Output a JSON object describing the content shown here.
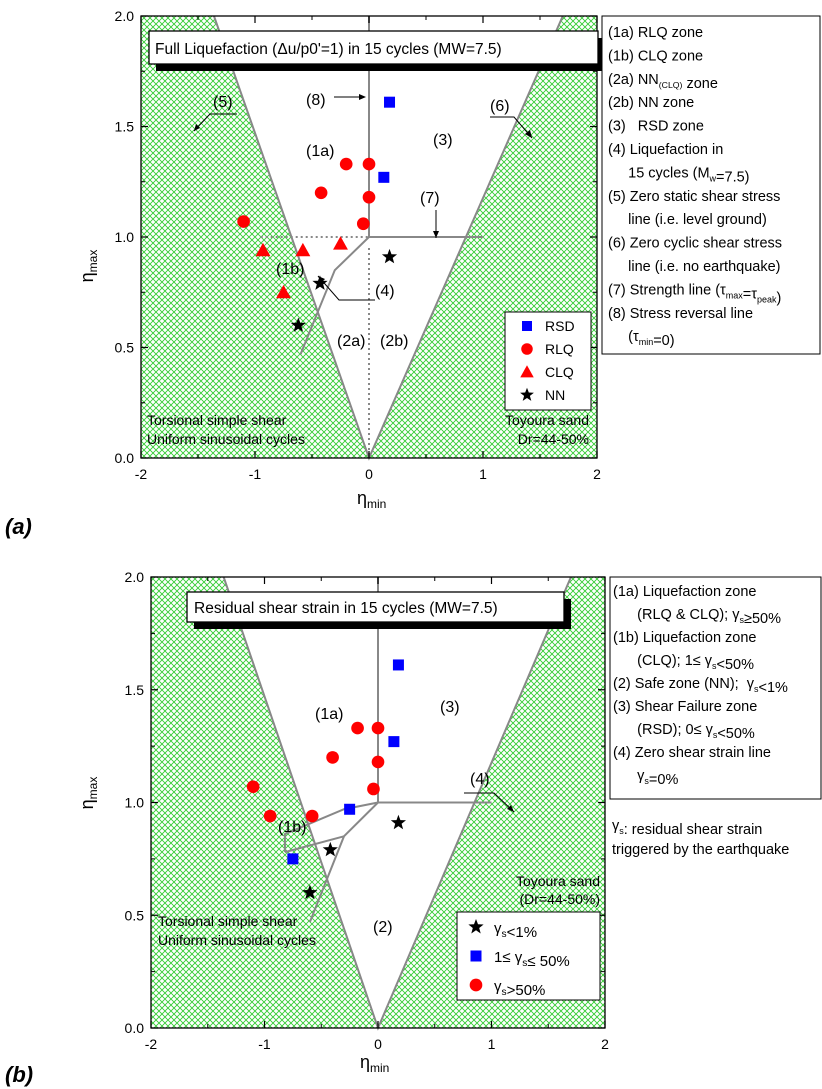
{
  "chart_data": [
    {
      "panel_label": "(a)",
      "type": "scatter",
      "title": "Full Liquefaction (Δu/p0'=1) in 15 cycles (MW=7.5)",
      "xlabel": "ηmin",
      "ylabel": "ηmax",
      "xlim": [
        -2,
        2
      ],
      "ylim": [
        0,
        2
      ],
      "x_ticks": [
        "-2",
        "-1",
        "0",
        "1",
        "2"
      ],
      "y_ticks": [
        "0.0",
        "0.5",
        "1.0",
        "1.5",
        "2.0"
      ],
      "grid": false,
      "legend_position": "lower-right",
      "series": [
        {
          "name": "RSD",
          "marker": "square",
          "color": "#0000ff",
          "points": [
            [
              0.18,
              1.61
            ],
            [
              0.13,
              1.27
            ]
          ]
        },
        {
          "name": "RLQ",
          "marker": "circle",
          "color": "#ff0000",
          "points": [
            [
              -1.1,
              1.07
            ],
            [
              -0.42,
              1.2
            ],
            [
              -0.2,
              1.33
            ],
            [
              0.0,
              1.33
            ],
            [
              0.0,
              1.18
            ],
            [
              -0.05,
              1.06
            ]
          ]
        },
        {
          "name": "CLQ",
          "marker": "triangle",
          "color": "#ff0000",
          "points": [
            [
              -0.93,
              0.94
            ],
            [
              -0.58,
              0.94
            ],
            [
              -0.25,
              0.97
            ],
            [
              -0.75,
              0.75
            ]
          ]
        },
        {
          "name": "NN",
          "marker": "star",
          "color": "#000000",
          "points": [
            [
              -0.62,
              0.6
            ],
            [
              -0.43,
              0.79
            ],
            [
              0.18,
              0.91
            ]
          ]
        }
      ],
      "zone_labels": [
        "(1a)",
        "(1b)",
        "(2a)",
        "(2b)",
        "(3)",
        "(4)",
        "(5)",
        "(6)",
        "(7)",
        "(8)"
      ],
      "annotations": [
        "Torsional simple shear",
        "Uniform sinusoidal cycles",
        "Toyoura sand",
        "Dr=44-50%"
      ],
      "legend_box": [
        "(1a) RLQ zone",
        "(1b) CLQ zone",
        "(2a) NN(CLQ) zone",
        "(2b) NN zone",
        "(3)   RSD zone",
        "(4) Liquefaction in",
        "     15 cycles (Mw=7.5)",
        "(5) Zero static shear stress",
        "     line (i.e. level ground)",
        "(6) Zero cyclic shear stress",
        "     line (i.e. no earthquake)",
        "(7) Strength line (τmax=τpeak)",
        "(8) Stress reversal line",
        "     (τmin=0)"
      ]
    },
    {
      "panel_label": "(b)",
      "type": "scatter",
      "title": "Residual shear strain in 15 cycles (MW=7.5)",
      "xlabel": "ηmin",
      "ylabel": "ηmax",
      "xlim": [
        -2,
        2
      ],
      "ylim": [
        0,
        2
      ],
      "x_ticks": [
        "-2",
        "-1",
        "0",
        "1",
        "2"
      ],
      "y_ticks": [
        "0.0",
        "0.5",
        "1.0",
        "1.5",
        "2.0"
      ],
      "grid": false,
      "legend_position": "lower-right",
      "series": [
        {
          "name": "γs<1%",
          "marker": "star",
          "color": "#000000",
          "points": [
            [
              -0.6,
              0.6
            ],
            [
              -0.42,
              0.79
            ],
            [
              0.18,
              0.91
            ]
          ]
        },
        {
          "name": "1≤ γs≤ 50%",
          "marker": "square",
          "color": "#0000ff",
          "points": [
            [
              0.18,
              1.61
            ],
            [
              0.14,
              1.27
            ],
            [
              -0.75,
              0.75
            ],
            [
              -0.25,
              0.97
            ]
          ]
        },
        {
          "name": "γs>50%",
          "marker": "circle",
          "color": "#ff0000",
          "points": [
            [
              -1.1,
              1.07
            ],
            [
              -0.95,
              0.94
            ],
            [
              -0.58,
              0.94
            ],
            [
              -0.4,
              1.2
            ],
            [
              -0.18,
              1.33
            ],
            [
              0.0,
              1.33
            ],
            [
              0.0,
              1.18
            ],
            [
              -0.04,
              1.06
            ]
          ]
        }
      ],
      "zone_labels": [
        "(1a)",
        "(1b)",
        "(2)",
        "(3)",
        "(4)"
      ],
      "annotations": [
        "Torsional simple shear",
        "Uniform sinusoidal cycles",
        "Toyoura sand",
        "(Dr=44-50%)"
      ],
      "legend_box": [
        "(1a) Liquefaction zone",
        "      (RLQ & CLQ); γs≥50%",
        "(1b) Liquefaction zone",
        "      (CLQ); 1≤ γs<50%",
        "(2) Safe zone (NN);  γs<1%",
        "(3) Shear Failure zone",
        "      (RSD); 0≤ γs<50%",
        "(4) Zero shear strain line",
        "      γs=0%"
      ],
      "note": [
        "γs: residual shear strain",
        "triggered by the earthquake"
      ]
    }
  ],
  "colors": {
    "hatch": "#33cc33",
    "zone_line": "#888888",
    "rsd": "#0000ff",
    "rlq": "#ff0000",
    "nn": "#000000"
  }
}
